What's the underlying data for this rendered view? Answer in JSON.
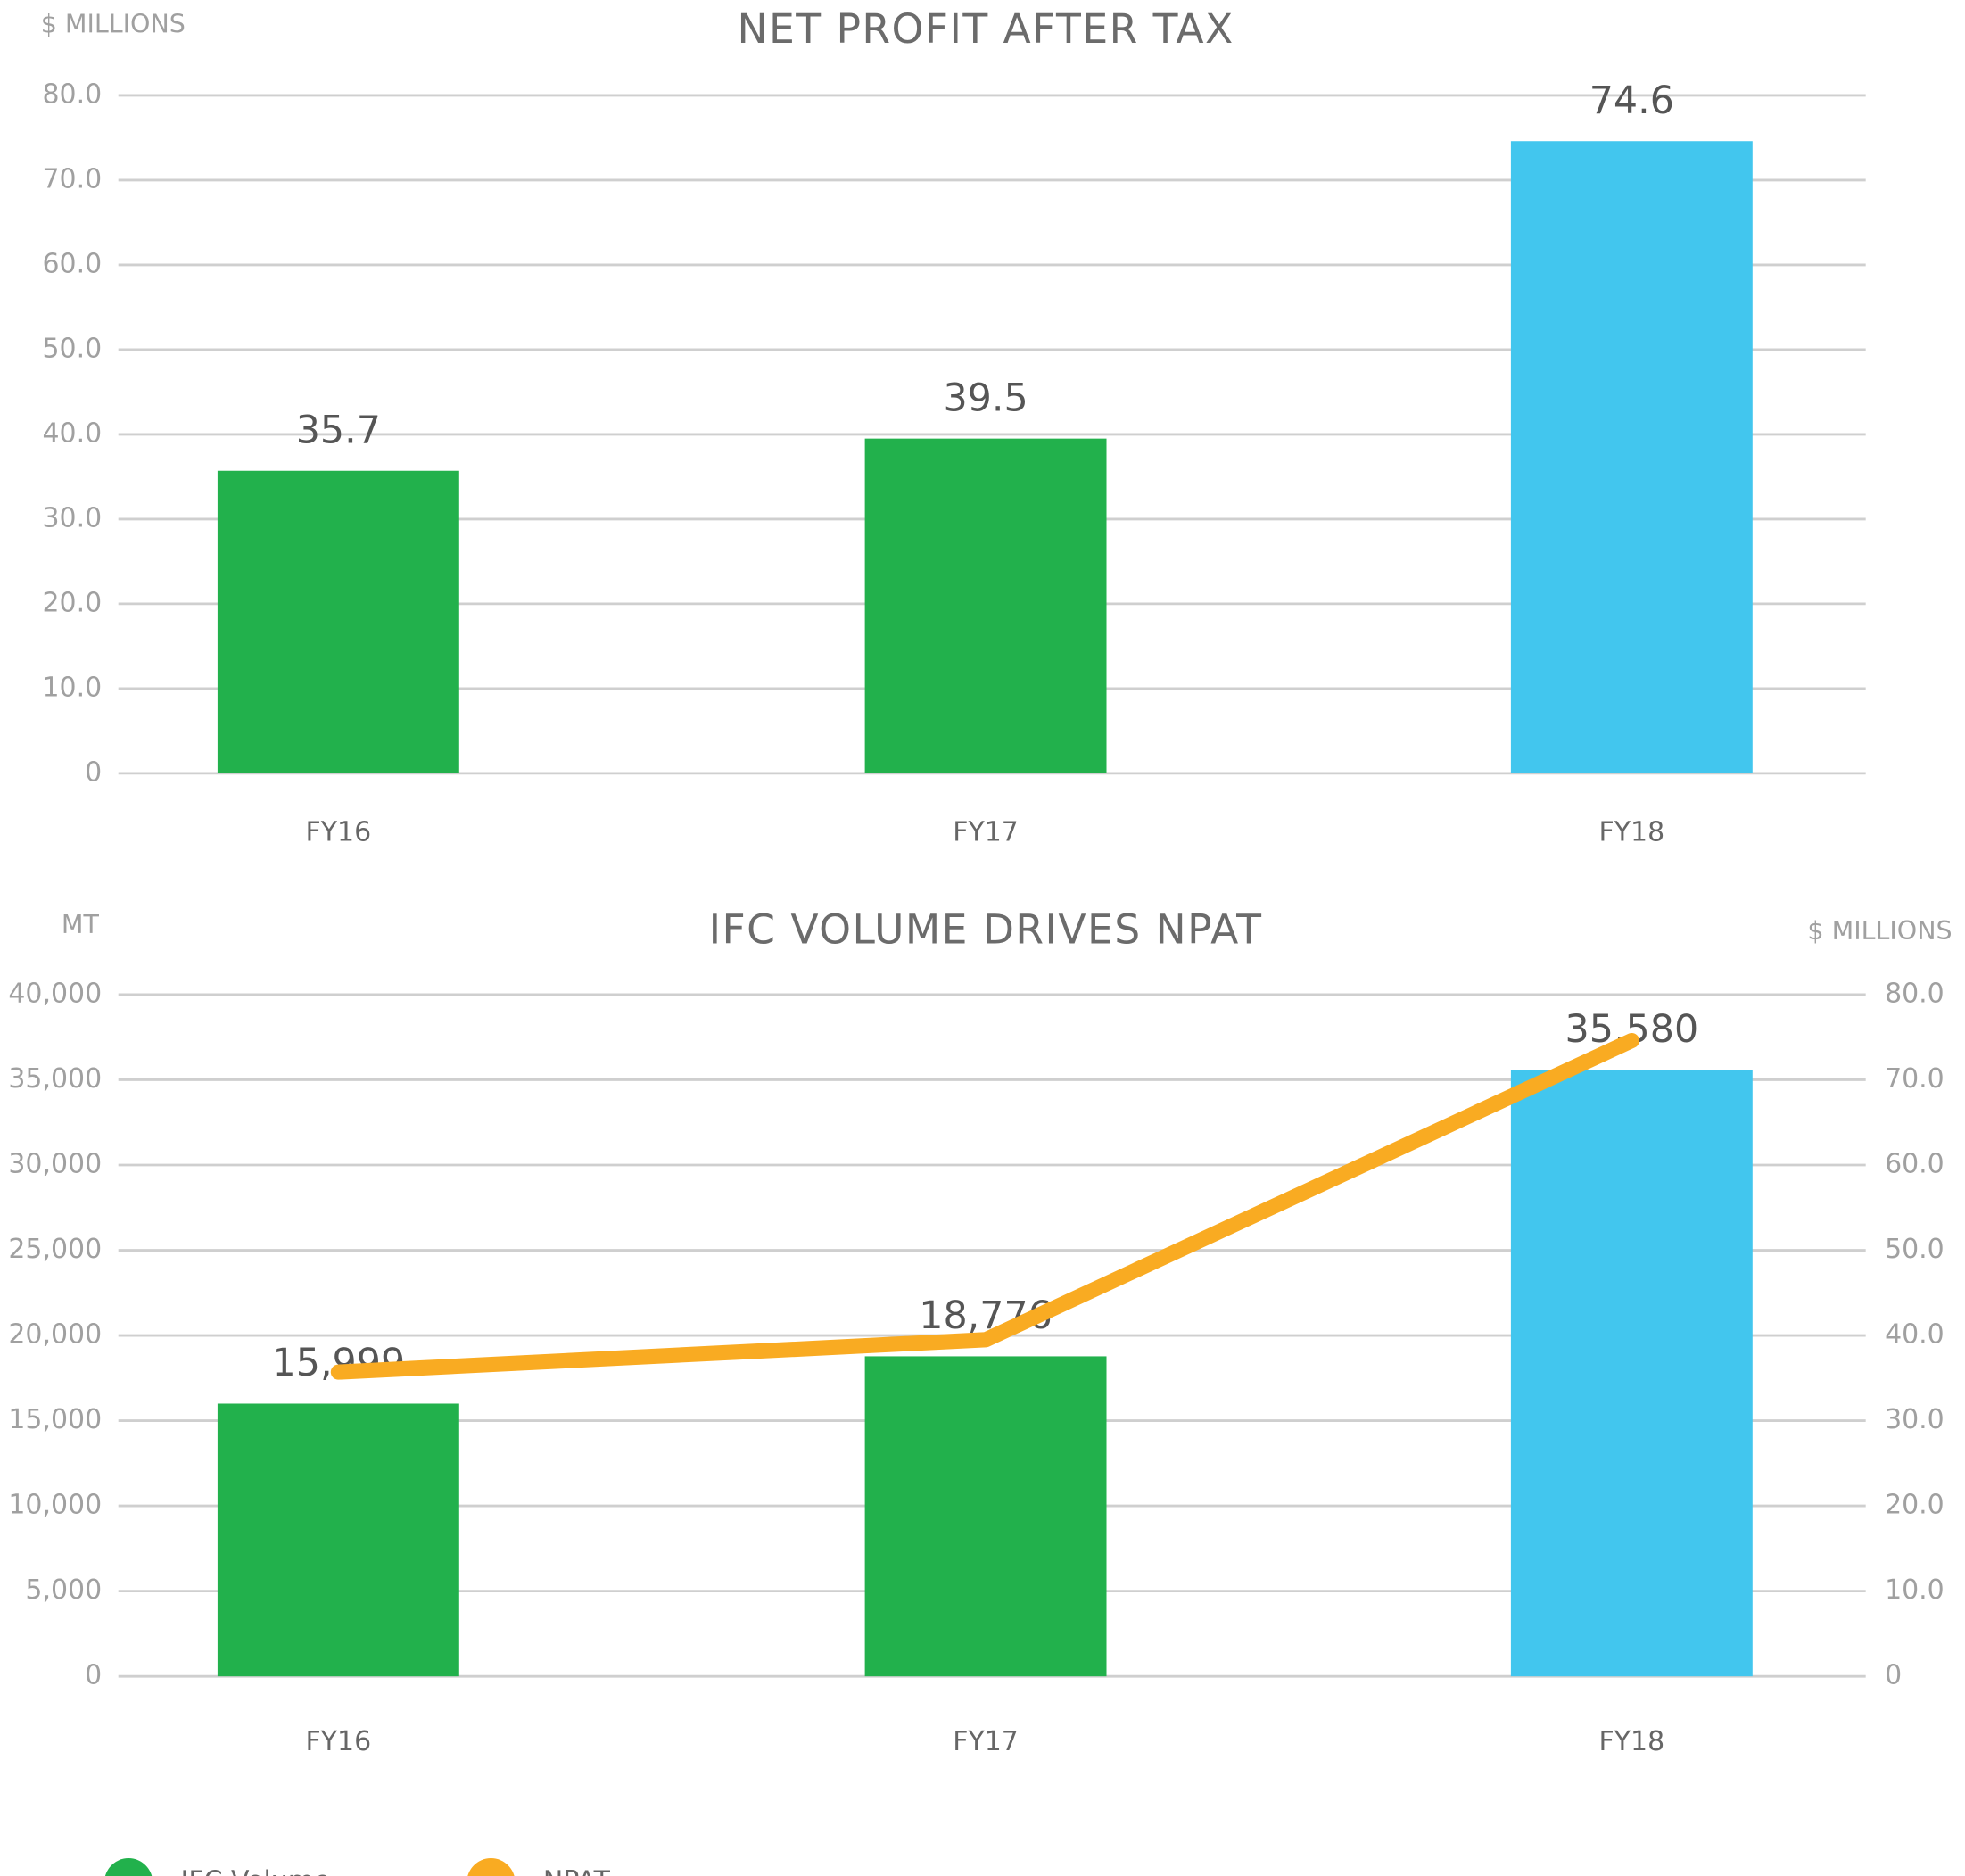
{
  "chart_data": [
    {
      "type": "bar",
      "title": "NET PROFIT AFTER TAX",
      "y_label": "$ MILLIONS",
      "categories": [
        "FY16",
        "FY17",
        "FY18"
      ],
      "values": [
        35.7,
        39.5,
        74.6
      ],
      "colors": [
        "#22b14c",
        "#22b14c",
        "#42c6ee"
      ],
      "ylim": [
        0,
        80
      ],
      "yticks": [
        0,
        {
          "value": 10,
          "label": "10.0"
        },
        {
          "value": 20,
          "label": "20.0"
        },
        {
          "value": 30,
          "label": "30.0"
        },
        {
          "value": 40,
          "label": "40.0"
        },
        {
          "value": 50,
          "label": "50.0"
        },
        {
          "value": 60,
          "label": "60.0"
        },
        {
          "value": 70,
          "label": "70.0"
        },
        {
          "value": 80,
          "label": "80.0"
        }
      ],
      "grid": true
    },
    {
      "type": "combo",
      "title": "IFC VOLUME DRIVES NPAT",
      "y_label": "MT",
      "y2_label": "$ MILLIONS",
      "categories": [
        "FY16",
        "FY17",
        "FY18"
      ],
      "series": [
        {
          "name": "IFC Volume",
          "type": "bar",
          "color": "#22b14c",
          "colors": [
            "#22b14c",
            "#22b14c",
            "#42c6ee"
          ],
          "values": [
            15999,
            18776,
            35580
          ],
          "value_labels": [
            "15,999",
            "18,776",
            "35,580"
          ]
        },
        {
          "name": "NPAT",
          "type": "line",
          "color": "#f9ab22",
          "axis": "y2",
          "values": [
            35.7,
            39.5,
            74.6
          ]
        }
      ],
      "ylim": [
        0,
        40000
      ],
      "yticks": [
        0,
        {
          "value": 5000,
          "label": "5,000"
        },
        {
          "value": 10000,
          "label": "10,000"
        },
        {
          "value": 15000,
          "label": "15,000"
        },
        {
          "value": 25000,
          "label": "25,000"
        },
        {
          "value": 20000,
          "label": "20,000"
        },
        {
          "value": 30000,
          "label": "30,000"
        },
        {
          "value": 35000,
          "label": "35,000"
        },
        {
          "value": 40000,
          "label": "40,000"
        }
      ],
      "y2lim": [
        0,
        80
      ],
      "y2ticks": [
        0,
        {
          "value": 10,
          "label": "10.0"
        },
        {
          "value": 20,
          "label": "20.0"
        },
        {
          "value": 30,
          "label": "30.0"
        },
        {
          "value": 40,
          "label": "40.0"
        },
        {
          "value": 50,
          "label": "50.0"
        },
        {
          "value": 60,
          "label": "60.0"
        },
        {
          "value": 70,
          "label": "70.0"
        },
        {
          "value": 80,
          "label": "80.0"
        }
      ],
      "grid": true,
      "legend": "bottom-left"
    }
  ]
}
